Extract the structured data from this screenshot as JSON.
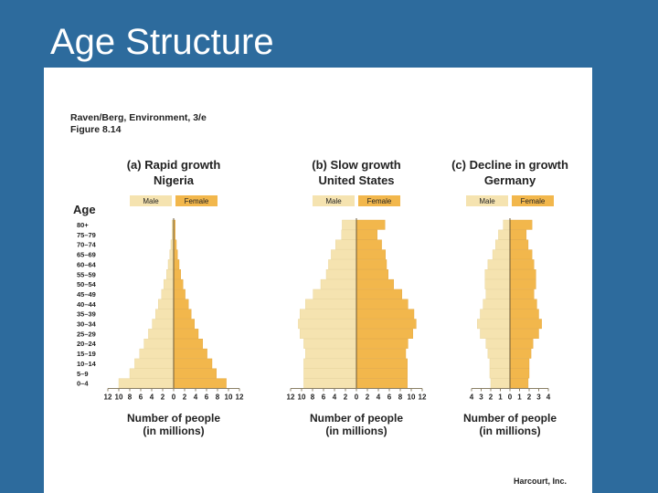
{
  "slide_title": "Age Structure",
  "source": {
    "line1": "Raven/Berg, Environment, 3/e",
    "line2": "Figure 8.14"
  },
  "publisher": "Harcourt, Inc.",
  "colors": {
    "male": "#f5e3b0",
    "female": "#f2b74c",
    "slide_bg": "#2d6b9d",
    "axis": "#8a7f66"
  },
  "age_axis_label": "Age",
  "chart_data": [
    {
      "type": "bar",
      "orientation": "horizontal-population-pyramid",
      "title": "(a) Rapid growth",
      "subtitle": "Nigeria",
      "legend": [
        "Male",
        "Female"
      ],
      "xlabel": "Number of people",
      "xlabel2": "(in millions)",
      "xlim": [
        -12,
        12
      ],
      "x_ticks": [
        "12",
        "10",
        "8",
        "6",
        "4",
        "2",
        "0",
        "2",
        "4",
        "6",
        "8",
        "10",
        "12"
      ],
      "categories": [
        "0–4",
        "5–9",
        "10–14",
        "15–19",
        "20–24",
        "25–29",
        "30–34",
        "35–39",
        "40–44",
        "45–49",
        "50–54",
        "55–59",
        "60–64",
        "65–69",
        "70–74",
        "75–79",
        "80+"
      ],
      "series": [
        {
          "name": "Male",
          "values": [
            10,
            8,
            7.1,
            6.2,
            5.4,
            4.6,
            3.9,
            3.3,
            2.8,
            2.2,
            1.8,
            1.3,
            1.0,
            0.7,
            0.5,
            0.3,
            0.3
          ]
        },
        {
          "name": "Female",
          "values": [
            9.6,
            7.8,
            7.0,
            6.1,
            5.3,
            4.5,
            3.8,
            3.2,
            2.7,
            2.1,
            1.7,
            1.3,
            1.0,
            0.7,
            0.5,
            0.3,
            0.3
          ]
        }
      ]
    },
    {
      "type": "bar",
      "orientation": "horizontal-population-pyramid",
      "title": "(b) Slow growth",
      "subtitle": "United States",
      "legend": [
        "Male",
        "Female"
      ],
      "xlabel": "Number of people",
      "xlabel2": "(in millions)",
      "xlim": [
        -12,
        12
      ],
      "x_ticks": [
        "12",
        "10",
        "8",
        "6",
        "4",
        "2",
        "0",
        "2",
        "4",
        "6",
        "8",
        "10",
        "12"
      ],
      "categories": [
        "0–4",
        "5–9",
        "10–14",
        "15–19",
        "20–24",
        "25–29",
        "30–34",
        "35–39",
        "40–44",
        "45–49",
        "50–54",
        "55–59",
        "60–64",
        "65–69",
        "70–74",
        "75–79",
        "80+"
      ],
      "series": [
        {
          "name": "Male",
          "values": [
            9.6,
            9.6,
            9.6,
            9.3,
            9.6,
            10.3,
            10.6,
            10.3,
            9.3,
            7.9,
            6.5,
            5.5,
            5.1,
            4.6,
            3.8,
            2.7,
            2.6
          ]
        },
        {
          "name": "Female",
          "values": [
            9.3,
            9.3,
            9.3,
            9.0,
            9.4,
            10.3,
            10.9,
            10.5,
            9.4,
            8.3,
            6.8,
            5.8,
            5.5,
            5.3,
            4.6,
            3.8,
            5.2
          ]
        }
      ]
    },
    {
      "type": "bar",
      "orientation": "horizontal-population-pyramid",
      "title": "(c) Decline in growth",
      "subtitle": "Germany",
      "legend": [
        "Male",
        "Female"
      ],
      "xlabel": "Number of people",
      "xlabel2": "(in millions)",
      "xlim": [
        -4,
        4
      ],
      "x_ticks": [
        "4",
        "3",
        "2",
        "1",
        "0",
        "1",
        "2",
        "3",
        "4"
      ],
      "categories": [
        "0–4",
        "5–9",
        "10–14",
        "15–19",
        "20–24",
        "25–29",
        "30–34",
        "35–39",
        "40–44",
        "45–49",
        "50–54",
        "55–59",
        "60–64",
        "65–69",
        "70–74",
        "75–79",
        "80+"
      ],
      "series": [
        {
          "name": "Male",
          "values": [
            2.0,
            2.1,
            2.1,
            2.3,
            2.5,
            3.1,
            3.4,
            3.1,
            2.8,
            2.5,
            2.6,
            2.6,
            2.3,
            1.8,
            1.5,
            1.2,
            0.7
          ]
        },
        {
          "name": "Female",
          "values": [
            1.9,
            2.0,
            2.0,
            2.2,
            2.4,
            3.0,
            3.3,
            3.0,
            2.8,
            2.5,
            2.7,
            2.7,
            2.5,
            2.3,
            1.9,
            1.7,
            2.3
          ]
        }
      ]
    }
  ]
}
